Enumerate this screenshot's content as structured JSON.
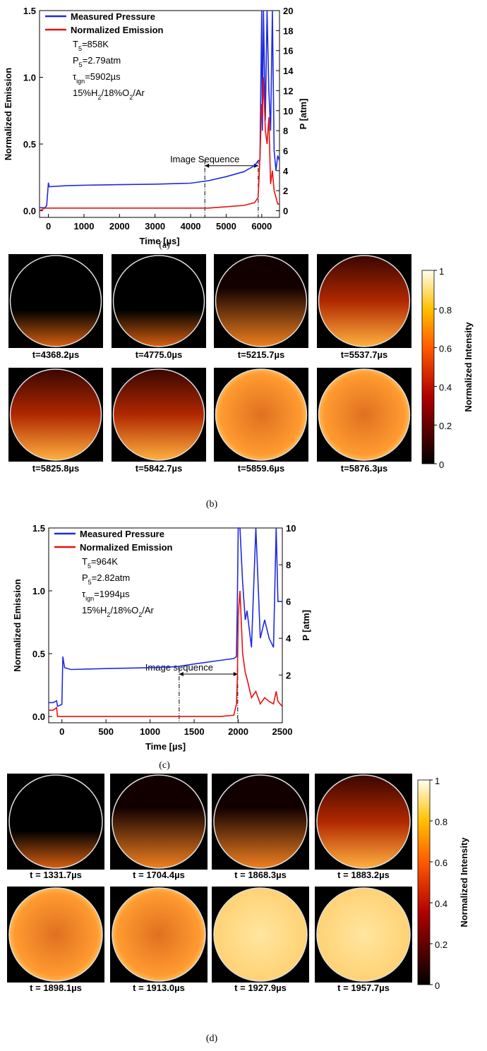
{
  "figure": {
    "captions": [
      "(a)",
      "(b)",
      "(c)",
      "(d)"
    ]
  },
  "chart_data": [
    {
      "type": "line",
      "x": [
        -250,
        -100,
        -50,
        0,
        20,
        500,
        1000,
        2000,
        3000,
        4000,
        4500,
        5000,
        5500,
        5800,
        5900,
        5950,
        6000,
        6020,
        6050,
        6100,
        6150,
        6200,
        6250,
        6300,
        6350,
        6400,
        6450,
        6500
      ],
      "series": [
        {
          "name": "Measured Pressure",
          "color": "#1f2be0",
          "axis": "y2",
          "values": [
            0.3,
            0.3,
            0.5,
            2.8,
            2.4,
            2.5,
            2.55,
            2.6,
            2.65,
            2.75,
            3.0,
            3.4,
            3.9,
            4.5,
            5,
            5,
            20,
            8,
            20,
            9,
            20,
            12,
            8,
            20,
            6,
            4,
            5.5,
            5
          ]
        },
        {
          "name": "Normalized Emission",
          "color": "#e81010",
          "values": [
            0,
            0.02,
            0.02,
            0.02,
            0.02,
            0.02,
            0.02,
            0.02,
            0.02,
            0.02,
            0.02,
            0.03,
            0.04,
            0.06,
            0.1,
            0.4,
            0.8,
            0.7,
            1.0,
            0.6,
            0.5,
            0.7,
            0.2,
            0.3,
            0.15,
            0.1,
            0.05,
            0.05
          ]
        }
      ],
      "xlabel": "Time [µs]",
      "ylabel": "Normalized Emission",
      "y2label": "P [atm]",
      "xlim": [
        -250,
        6500
      ],
      "xticks": [
        0,
        1000,
        2000,
        3000,
        4000,
        5000,
        6000
      ],
      "ylim": [
        -0.05,
        1.5
      ],
      "yticks": [
        {
          "value": 0,
          "label": "0.0"
        },
        0.5,
        {
          "value": 1,
          "label": "1.0"
        },
        1.5
      ],
      "y2lim": [
        -0.67,
        20
      ],
      "y2ticks": [
        0,
        2,
        4,
        6,
        8,
        10,
        12,
        14,
        16,
        18,
        20
      ],
      "legend": "upper left",
      "conditions": [
        [
          "T",
          "5",
          "=858K"
        ],
        [
          "P",
          "5",
          "=2.79atm"
        ],
        [
          "τ",
          "ign",
          "=5902µs"
        ],
        [
          "15%H",
          "2",
          "/18%O",
          "2",
          "/Ar"
        ]
      ],
      "image_sequence": {
        "label": "Image Sequence",
        "x": [
          4400,
          5902
        ]
      }
    },
    {
      "type": "line",
      "x": [
        -150,
        -100,
        -60,
        -50,
        0,
        10,
        30,
        100,
        500,
        1000,
        1300,
        1500,
        1800,
        1950,
        1980,
        1990,
        2000,
        2020,
        2050,
        2080,
        2100,
        2150,
        2200,
        2250,
        2300,
        2350,
        2400,
        2430,
        2450,
        2500
      ],
      "series": [
        {
          "name": "Measured Pressure",
          "color": "#1f2be0",
          "axis": "y2",
          "values": [
            0.5,
            0.5,
            0.6,
            0.3,
            0.4,
            3.0,
            2.4,
            2.3,
            2.35,
            2.4,
            2.45,
            2.6,
            2.8,
            2.9,
            3.0,
            6,
            10,
            10,
            7,
            5,
            5.5,
            3.5,
            10,
            4,
            5,
            4,
            3.5,
            10,
            6,
            6
          ]
        },
        {
          "name": "Normalized  Emission",
          "color": "#e81010",
          "values": [
            0.05,
            0.05,
            0.07,
            0,
            0,
            0,
            0,
            0,
            0,
            0,
            0,
            0,
            0,
            0.01,
            0.1,
            0.3,
            0.8,
            1.0,
            0.5,
            0.35,
            0.3,
            0.15,
            0.2,
            0.1,
            0.15,
            0.12,
            0.1,
            0.2,
            0.12,
            0.08
          ]
        }
      ],
      "xlabel": "Time [µs]",
      "ylabel": "Normalized Emission",
      "y2label": "P [atm]",
      "xlim": [
        -150,
        2500
      ],
      "xticks": [
        0,
        500,
        1000,
        1500,
        2000,
        2500
      ],
      "ylim": [
        -0.05,
        1.5
      ],
      "yticks": [
        {
          "value": 0,
          "label": "0.0"
        },
        0.5,
        {
          "value": 1,
          "label": "1.0"
        },
        1.5
      ],
      "y2lim": [
        -0.6,
        10
      ],
      "y2ticks": [
        2,
        4,
        6,
        8,
        10
      ],
      "legend": "upper left",
      "conditions": [
        [
          "T",
          "5",
          "=964K"
        ],
        [
          "P",
          "5",
          "=2.82atm"
        ],
        [
          "τ",
          "ign",
          "=1994µs"
        ],
        [
          "15%H",
          "2",
          "/18%O",
          "2",
          "/Ar"
        ]
      ],
      "image_sequence": {
        "label": "Image sequence",
        "x": [
          1330,
          1994
        ]
      }
    }
  ],
  "image_panels": [
    {
      "captions": [
        "t=4368.2µs",
        "t=4775.0µs",
        "t=5215.7µs",
        "t=5537.7µs",
        "t=5825.8µs",
        "t=5842.7µs",
        "t=5859.6µs",
        "t=5876.3µs"
      ],
      "colorbar": {
        "label": "Normalized Intensity",
        "ylim": [
          0,
          1
        ],
        "yticks": [
          0,
          0.2,
          0.4,
          0.6,
          0.8,
          1
        ]
      }
    },
    {
      "captions": [
        "t = 1331.7µs",
        "t = 1704.4µs",
        "t = 1868.3µs",
        "t = 1883.2µs",
        "t = 1898.1µs",
        "t = 1913.0µs",
        "t = 1927.9µs",
        "t = 1957.7µs"
      ],
      "colorbar": {
        "label": "Normalized Intensity",
        "ylim": [
          0,
          1
        ],
        "yticks": [
          0,
          0.2,
          0.4,
          0.6,
          0.8,
          1
        ]
      }
    }
  ]
}
